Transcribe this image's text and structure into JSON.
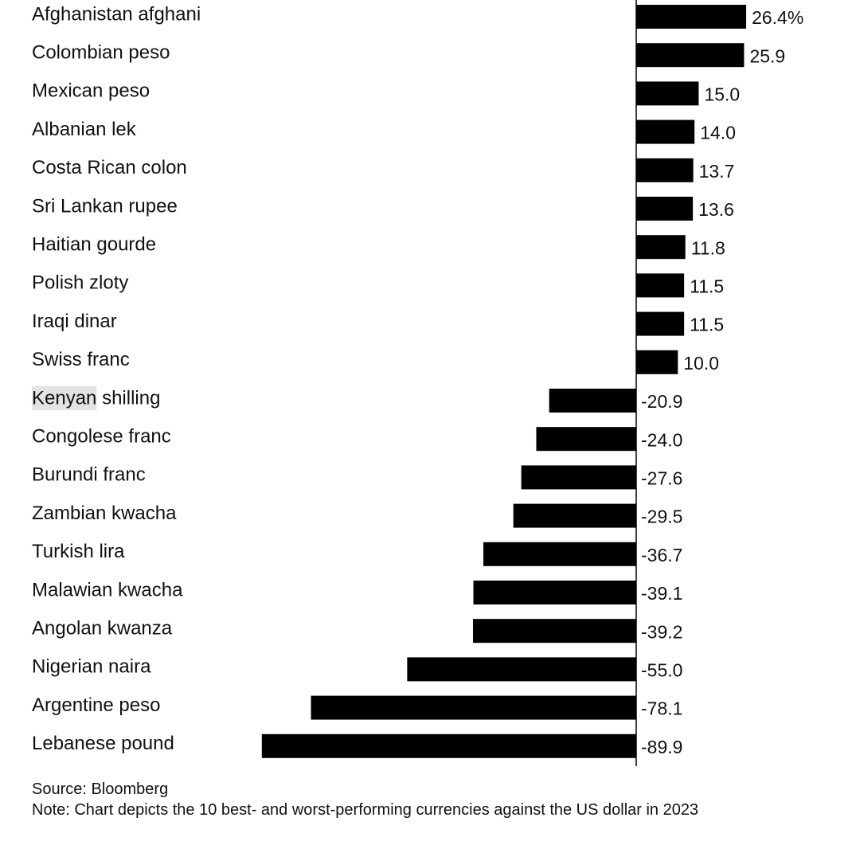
{
  "chart_data": {
    "type": "bar",
    "orientation": "horizontal",
    "categories": [
      "Afghanistan afghani",
      "Colombian peso",
      "Mexican peso",
      "Albanian lek",
      "Costa Rican colon",
      "Sri Lankan rupee",
      "Haitian gourde",
      "Polish zloty",
      "Iraqi dinar",
      "Swiss franc",
      "Kenyan shilling",
      "Congolese franc",
      "Burundi franc",
      "Zambian kwacha",
      "Turkish lira",
      "Malawian kwacha",
      "Angolan kwanza",
      "Nigerian naira",
      "Argentine peso",
      "Lebanese pound"
    ],
    "values": [
      26.4,
      25.9,
      15.0,
      14.0,
      13.7,
      13.6,
      11.8,
      11.5,
      11.5,
      10.0,
      -20.9,
      -24.0,
      -27.6,
      -29.5,
      -36.7,
      -39.1,
      -39.2,
      -55.0,
      -78.1,
      -89.9
    ],
    "value_labels": [
      "26.4%",
      "25.9",
      "15.0",
      "14.0",
      "13.7",
      "13.6",
      "11.8",
      "11.5",
      "11.5",
      "10.0",
      "-20.9",
      "-24.0",
      "-27.6",
      "-29.5",
      "-36.7",
      "-39.1",
      "-39.2",
      "-55.0",
      "-78.1",
      "-89.9"
    ],
    "highlighted_text": "Kenyan",
    "bar_color": "#000000",
    "highlight_color": "#e3e3e3",
    "grid": false,
    "legend": "none"
  },
  "footer": {
    "source": "Source: Bloomberg",
    "note": "Note: Chart depicts the 10 best- and worst-performing currencies against the US dollar in 2023"
  }
}
